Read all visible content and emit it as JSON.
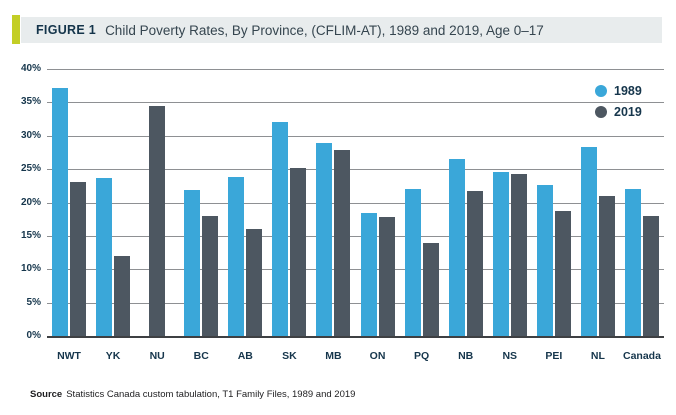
{
  "figure": {
    "label": "FIGURE 1",
    "title": "Child Poverty Rates, By Province, (CFLIM-AT), 1989 and 2019, Age 0–17"
  },
  "source": {
    "label": "Source",
    "text": "Statistics Canada custom tabulation, T1 Family Files, 1989 and 2019"
  },
  "colors": {
    "accent_green": "#c3ce26",
    "header_bg": "#e8eced",
    "header_label_navy": "#14344a",
    "header_title_gray": "#35454f",
    "series_1989_blue": "#3aa7d9",
    "series_2019_gray": "#4d5761",
    "gridline_gray": "#8e9093",
    "baseline_dark": "#3e4043",
    "axis_label_navy": "#16364c"
  },
  "chart_data": {
    "type": "bar",
    "title": "Child Poverty Rates, By Province, (CFLIM-AT), 1989 and 2019, Age 0–17",
    "categories": [
      "NWT",
      "YK",
      "NU",
      "BC",
      "AB",
      "SK",
      "MB",
      "ON",
      "PQ",
      "NB",
      "NS",
      "PEI",
      "NL",
      "Canada"
    ],
    "series": [
      {
        "name": "1989",
        "color": "#3aa7d9",
        "values": [
          37.2,
          23.6,
          null,
          21.9,
          23.8,
          32.1,
          28.9,
          18.4,
          22.0,
          26.5,
          24.5,
          22.6,
          28.3,
          22.0
        ]
      },
      {
        "name": "2019",
        "color": "#4d5761",
        "values": [
          23.0,
          12.0,
          34.5,
          18.0,
          16.0,
          25.2,
          27.8,
          17.9,
          13.9,
          21.7,
          24.3,
          18.7,
          21.0,
          18.0
        ]
      }
    ],
    "xlabel": "",
    "ylabel": "",
    "ylim": [
      0,
      40
    ],
    "ytick_step": 5,
    "ytick_labels": [
      "0%",
      "5%",
      "10%",
      "15%",
      "20%",
      "25%",
      "30%",
      "35%",
      "40%"
    ],
    "grid": "horizontal",
    "legend_position": "top-right",
    "legend": [
      "1989",
      "2019"
    ]
  }
}
